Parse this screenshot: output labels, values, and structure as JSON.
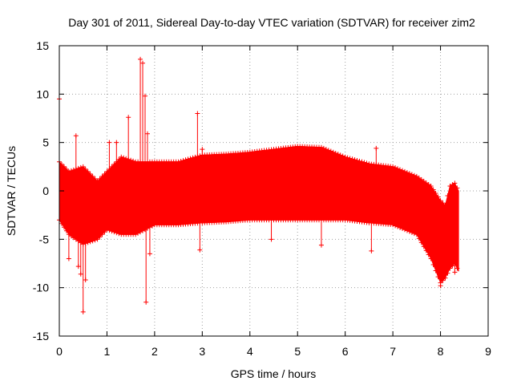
{
  "chart_data": {
    "type": "scatter",
    "title": "Day 301 of 2011, Sidereal Day-to-day VTEC variation (SDTVAR) for receiver zim2",
    "xlabel": "GPS time / hours",
    "ylabel": "SDTVAR / TECUs",
    "xlim": [
      0,
      9
    ],
    "ylim": [
      -15,
      15
    ],
    "grid": true,
    "marker": "+",
    "xticks": [
      "0",
      "1",
      "2",
      "3",
      "4",
      "5",
      "6",
      "7",
      "8",
      "9"
    ],
    "yticks": [
      "15",
      "10",
      "5",
      "0",
      "-5",
      "-10",
      "-15"
    ],
    "series": [
      {
        "name": "SDTVAR",
        "color": "#ff0000",
        "x": [
          0.0,
          0.2,
          0.5,
          0.8,
          1.0,
          1.3,
          1.6,
          2.0,
          2.5,
          3.0,
          3.5,
          4.0,
          4.5,
          5.0,
          5.5,
          6.0,
          6.5,
          7.0,
          7.5,
          7.8,
          8.0,
          8.1,
          8.2,
          8.3,
          8.38
        ],
        "upper": [
          3.0,
          2.0,
          2.5,
          1.0,
          2.0,
          3.5,
          3.0,
          3.0,
          3.0,
          3.7,
          3.8,
          4.0,
          4.3,
          4.6,
          4.5,
          3.5,
          2.8,
          2.5,
          1.5,
          0.5,
          -1.0,
          -1.5,
          0.5,
          0.8,
          0.0
        ],
        "lower": [
          -3.0,
          -4.5,
          -5.5,
          -5.0,
          -4.0,
          -4.5,
          -4.5,
          -3.5,
          -3.5,
          -3.3,
          -3.2,
          -3.0,
          -3.0,
          -3.0,
          -3.0,
          -3.0,
          -3.3,
          -3.5,
          -4.5,
          -7.0,
          -9.5,
          -9.0,
          -8.0,
          -7.5,
          -8.3
        ],
        "outliers_x": [
          0.0,
          0.1,
          0.2,
          0.35,
          0.4,
          0.45,
          0.5,
          0.55,
          1.05,
          1.2,
          1.45,
          1.7,
          1.75,
          1.8,
          1.82,
          1.85,
          1.9,
          2.9,
          2.95,
          3.0,
          4.45,
          5.5,
          6.55,
          6.65,
          8.0,
          8.3
        ],
        "outliers_y": [
          9.5,
          2.5,
          -7.0,
          5.7,
          -7.8,
          -8.6,
          -12.5,
          -9.2,
          5.0,
          5.0,
          7.6,
          13.6,
          13.2,
          9.8,
          -11.5,
          5.9,
          -6.5,
          8.0,
          -6.1,
          4.3,
          -5.0,
          -5.6,
          -6.2,
          4.4,
          -9.8,
          -8.4
        ]
      }
    ]
  }
}
